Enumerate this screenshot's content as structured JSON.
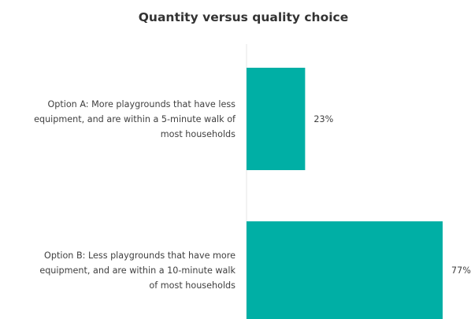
{
  "chart_data": {
    "type": "bar",
    "orientation": "horizontal",
    "title": "Quantity versus quality choice",
    "categories": [
      [
        "Option A: More playgrounds that have less",
        "equipment, and are within a 5-minute walk of",
        "most households"
      ],
      [
        "Option B: Less playgrounds that have more",
        "equipment, and are within a 10-minute walk",
        "of most households"
      ]
    ],
    "values": [
      23,
      77
    ],
    "value_labels": [
      "23%",
      "77%"
    ],
    "unit": "%",
    "xlim": [
      0,
      100
    ],
    "grid": false,
    "legend": "none",
    "bar_color": "#00afa5",
    "axis_color": "#e6e6e6"
  }
}
